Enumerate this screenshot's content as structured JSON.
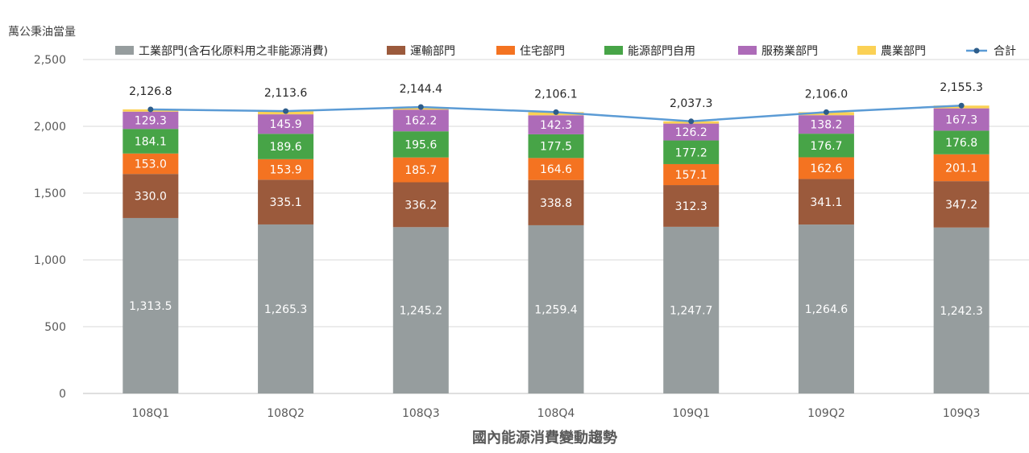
{
  "chart_data": {
    "type": "bar",
    "stacked": true,
    "title": "國內能源消費變動趨勢",
    "ylabel": "萬公秉油當量",
    "xlabel": "",
    "ylim": [
      0,
      2500
    ],
    "yticks": [
      0,
      500,
      1000,
      1500,
      2000,
      2500
    ],
    "ytick_labels": [
      "0",
      "500",
      "1,000",
      "1,500",
      "2,000",
      "2,500"
    ],
    "grid": true,
    "legend_position": "top",
    "categories": [
      "108Q1",
      "108Q2",
      "108Q3",
      "108Q4",
      "109Q1",
      "109Q2",
      "109Q3"
    ],
    "series": [
      {
        "name": "工業部門(含石化原料用之非能源消費)",
        "color": "#969d9e",
        "label_color": "#ffffff",
        "values": [
          1313.5,
          1265.3,
          1245.2,
          1259.4,
          1247.7,
          1264.6,
          1242.3
        ],
        "labels": [
          "1,313.5",
          "1,265.3",
          "1,245.2",
          "1,259.4",
          "1,247.7",
          "1,264.6",
          "1,242.3"
        ]
      },
      {
        "name": "運輸部門",
        "color": "#9b5a3c",
        "label_color": "#ffffff",
        "values": [
          330.0,
          335.1,
          336.2,
          338.8,
          312.3,
          341.1,
          347.2
        ],
        "labels": [
          "330.0",
          "335.1",
          "336.2",
          "338.8",
          "312.3",
          "341.1",
          "347.2"
        ]
      },
      {
        "name": "住宅部門",
        "color": "#f47321",
        "label_color": "#ffffff",
        "values": [
          153.0,
          153.9,
          185.7,
          164.6,
          157.1,
          162.6,
          201.1
        ],
        "labels": [
          "153.0",
          "153.9",
          "185.7",
          "164.6",
          "157.1",
          "162.6",
          "201.1"
        ]
      },
      {
        "name": "能源部門自用",
        "color": "#47a447",
        "label_color": "#ffffff",
        "values": [
          184.1,
          189.6,
          195.6,
          177.5,
          177.2,
          176.7,
          176.8
        ],
        "labels": [
          "184.1",
          "189.6",
          "195.6",
          "177.5",
          "177.2",
          "176.7",
          "176.8"
        ]
      },
      {
        "name": "服務業部門",
        "color": "#ad6bb8",
        "label_color": "#ffffff",
        "values": [
          129.3,
          145.9,
          162.2,
          142.3,
          126.2,
          138.2,
          167.3
        ],
        "labels": [
          "129.3",
          "145.9",
          "162.2",
          "142.3",
          "126.2",
          "138.2",
          "167.3"
        ]
      },
      {
        "name": "農業部門",
        "color": "#fbd155",
        "label_color": "#262626",
        "values": [
          16.9,
          23.8,
          19.5,
          23.5,
          16.8,
          22.8,
          20.6
        ],
        "labels": []
      }
    ],
    "total": {
      "name": "合計",
      "color": "#5b9bd5",
      "values": [
        2126.8,
        2113.6,
        2144.4,
        2106.1,
        2037.3,
        2106.0,
        2155.3
      ],
      "labels": [
        "2,126.8",
        "2,113.6",
        "2,144.4",
        "2,106.1",
        "2,037.3",
        "2,106.0",
        "2,155.3"
      ]
    }
  }
}
